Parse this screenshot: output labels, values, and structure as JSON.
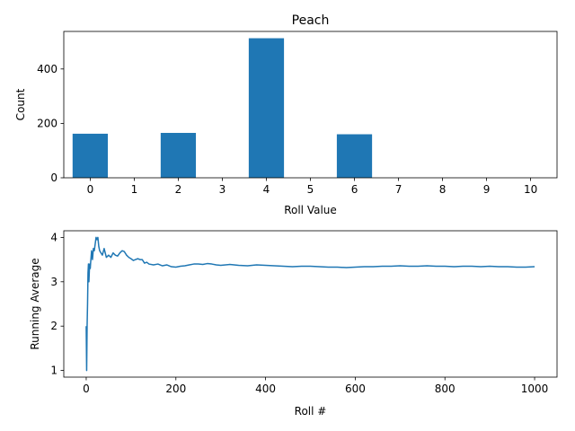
{
  "chart_data": [
    {
      "type": "bar",
      "title": "Peach",
      "xlabel": "Roll Value",
      "ylabel": "Count",
      "categories": [
        0,
        1,
        2,
        3,
        4,
        5,
        6,
        7,
        8,
        9,
        10
      ],
      "values": [
        162,
        0,
        165,
        0,
        513,
        0,
        160,
        0,
        0,
        0,
        0
      ],
      "xlim": [
        -0.6,
        10.6
      ],
      "ylim": [
        0,
        538
      ],
      "xticks": [
        "0",
        "1",
        "2",
        "3",
        "4",
        "5",
        "6",
        "7",
        "8",
        "9",
        "10"
      ],
      "yticks": [
        0,
        200,
        400
      ],
      "bar_color": "#1f77b4",
      "grid": false
    },
    {
      "type": "line",
      "title": "",
      "xlabel": "Roll #",
      "ylabel": "Running Average",
      "xlim": [
        -50,
        1050
      ],
      "ylim": [
        0.85,
        4.15
      ],
      "xticks": [
        0,
        200,
        400,
        600,
        800,
        1000
      ],
      "yticks": [
        1,
        2,
        3,
        4
      ],
      "line_color": "#1f77b4",
      "grid": false,
      "series": [
        {
          "x": [
            0,
            1,
            2,
            3,
            4,
            5,
            6,
            7,
            8,
            9,
            10,
            12,
            14,
            16,
            18,
            20,
            22,
            24,
            26,
            28,
            30,
            33,
            36,
            40,
            45,
            50,
            55,
            60,
            65,
            70,
            75,
            80,
            85,
            90,
            95,
            100,
            105,
            110,
            115,
            120,
            125,
            130,
            135,
            140,
            150,
            160,
            170,
            180,
            190,
            200,
            210,
            220,
            230,
            240,
            250,
            260,
            270,
            280,
            290,
            300,
            320,
            340,
            360,
            380,
            400,
            420,
            440,
            460,
            480,
            500,
            520,
            540,
            560,
            580,
            600,
            620,
            640,
            660,
            680,
            700,
            720,
            740,
            760,
            780,
            800,
            820,
            840,
            860,
            880,
            900,
            920,
            940,
            960,
            980,
            1000
          ],
          "y": [
            2.0,
            1.0,
            2.0,
            2.5,
            3.2,
            3.4,
            3.0,
            3.25,
            3.4,
            3.3,
            3.45,
            3.7,
            3.5,
            3.75,
            3.7,
            3.85,
            4.0,
            3.95,
            4.0,
            3.8,
            3.7,
            3.65,
            3.6,
            3.75,
            3.55,
            3.6,
            3.55,
            3.65,
            3.6,
            3.58,
            3.65,
            3.7,
            3.68,
            3.6,
            3.55,
            3.52,
            3.48,
            3.5,
            3.52,
            3.5,
            3.5,
            3.42,
            3.44,
            3.4,
            3.38,
            3.4,
            3.36,
            3.38,
            3.34,
            3.33,
            3.35,
            3.36,
            3.38,
            3.4,
            3.4,
            3.39,
            3.41,
            3.4,
            3.38,
            3.37,
            3.39,
            3.37,
            3.36,
            3.38,
            3.37,
            3.36,
            3.35,
            3.34,
            3.35,
            3.35,
            3.34,
            3.33,
            3.33,
            3.32,
            3.33,
            3.34,
            3.34,
            3.35,
            3.35,
            3.36,
            3.35,
            3.35,
            3.36,
            3.35,
            3.35,
            3.34,
            3.35,
            3.35,
            3.34,
            3.35,
            3.34,
            3.34,
            3.33,
            3.33,
            3.34
          ]
        }
      ]
    }
  ]
}
